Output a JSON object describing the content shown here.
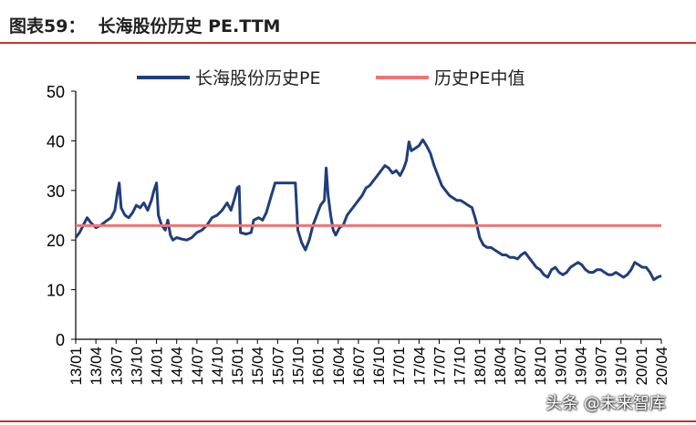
{
  "header": {
    "figure_label": "图表59：",
    "title": "长海股份历史 PE.TTM"
  },
  "watermark": "头条 @未来智库",
  "chart_data": {
    "type": "line",
    "ylim": [
      0,
      50
    ],
    "yticks": [
      0,
      10,
      20,
      30,
      40,
      50
    ],
    "x_tick_labels": [
      "13/01",
      "13/04",
      "13/07",
      "13/10",
      "14/01",
      "14/04",
      "14/07",
      "14/10",
      "15/01",
      "15/04",
      "15/07",
      "15/10",
      "16/01",
      "16/04",
      "16/07",
      "16/10",
      "17/01",
      "17/04",
      "17/07",
      "17/10",
      "18/01",
      "18/04",
      "18/07",
      "18/10",
      "19/01",
      "19/04",
      "19/07",
      "19/10",
      "20/01",
      "20/04"
    ],
    "legend_position": "top",
    "grid": false,
    "series": [
      {
        "name": "长海股份历史PE",
        "color": "#1f3f7a",
        "points": [
          [
            0,
            20.5
          ],
          [
            0.3,
            21.5
          ],
          [
            0.6,
            23
          ],
          [
            0.9,
            24.5
          ],
          [
            1.2,
            23.5
          ],
          [
            1.6,
            22.5
          ],
          [
            2.0,
            23
          ],
          [
            2.4,
            23.8
          ],
          [
            2.8,
            24.5
          ],
          [
            3.1,
            26
          ],
          [
            3.3,
            29.5
          ],
          [
            3.45,
            31.5
          ],
          [
            3.6,
            26.5
          ],
          [
            3.9,
            25
          ],
          [
            4.2,
            24.5
          ],
          [
            4.5,
            25.5
          ],
          [
            4.8,
            27
          ],
          [
            5.1,
            26.5
          ],
          [
            5.4,
            27.5
          ],
          [
            5.7,
            26
          ],
          [
            6.0,
            28
          ],
          [
            6.2,
            30
          ],
          [
            6.4,
            31.5
          ],
          [
            6.55,
            25
          ],
          [
            6.8,
            23
          ],
          [
            7.1,
            22
          ],
          [
            7.3,
            24
          ],
          [
            7.5,
            21
          ],
          [
            7.7,
            20
          ],
          [
            8.0,
            20.5
          ],
          [
            8.4,
            20.2
          ],
          [
            8.8,
            20
          ],
          [
            9.2,
            20.5
          ],
          [
            9.6,
            21.5
          ],
          [
            10.0,
            22
          ],
          [
            10.4,
            23
          ],
          [
            10.8,
            24.5
          ],
          [
            11.2,
            25
          ],
          [
            11.6,
            26
          ],
          [
            12.0,
            27.5
          ],
          [
            12.3,
            26
          ],
          [
            12.6,
            28.5
          ],
          [
            12.8,
            30.5
          ],
          [
            12.95,
            30.8
          ],
          [
            13.05,
            21.5
          ],
          [
            13.5,
            21.2
          ],
          [
            13.9,
            21.5
          ],
          [
            14.1,
            24
          ],
          [
            14.5,
            24.5
          ],
          [
            14.8,
            24
          ],
          [
            15.1,
            25.5
          ],
          [
            15.5,
            29
          ],
          [
            15.8,
            31.5
          ],
          [
            16.5,
            31.5
          ],
          [
            17.0,
            31.5
          ],
          [
            17.4,
            31.5
          ],
          [
            17.6,
            22
          ],
          [
            17.9,
            19.5
          ],
          [
            18.2,
            18
          ],
          [
            18.5,
            20
          ],
          [
            18.8,
            23
          ],
          [
            19.1,
            25
          ],
          [
            19.4,
            27
          ],
          [
            19.7,
            28
          ],
          [
            19.85,
            34.5
          ],
          [
            20.0,
            29
          ],
          [
            20.2,
            25
          ],
          [
            20.4,
            22
          ],
          [
            20.6,
            21
          ],
          [
            20.9,
            22.5
          ],
          [
            21.2,
            23
          ],
          [
            21.5,
            25
          ],
          [
            21.8,
            26
          ],
          [
            22.1,
            27
          ],
          [
            22.4,
            28
          ],
          [
            22.7,
            29
          ],
          [
            23.0,
            30.5
          ],
          [
            23.3,
            31
          ],
          [
            23.6,
            32
          ],
          [
            23.9,
            33
          ],
          [
            24.2,
            34
          ],
          [
            24.5,
            35
          ],
          [
            24.8,
            34.5
          ],
          [
            25.1,
            33.5
          ],
          [
            25.4,
            34
          ],
          [
            25.7,
            33
          ],
          [
            26.0,
            34.5
          ],
          [
            26.2,
            36
          ],
          [
            26.4,
            39.8
          ],
          [
            26.6,
            38
          ],
          [
            26.9,
            38.5
          ],
          [
            27.2,
            39
          ],
          [
            27.5,
            40.2
          ],
          [
            27.8,
            39
          ],
          [
            28.1,
            37.5
          ],
          [
            28.4,
            35
          ],
          [
            28.7,
            33
          ],
          [
            29.0,
            31
          ],
          [
            29.3,
            30
          ],
          [
            29.6,
            29
          ],
          [
            29.9,
            28.5
          ],
          [
            30.2,
            28
          ],
          [
            30.5,
            28
          ],
          [
            30.8,
            27.5
          ],
          [
            31.1,
            27
          ],
          [
            31.4,
            26.5
          ],
          [
            31.7,
            24
          ],
          [
            32.0,
            20.5
          ],
          [
            32.3,
            19
          ],
          [
            32.6,
            18.5
          ],
          [
            32.9,
            18.5
          ],
          [
            33.2,
            18
          ],
          [
            33.5,
            17.5
          ],
          [
            33.8,
            17
          ],
          [
            34.1,
            17
          ],
          [
            34.4,
            16.5
          ],
          [
            34.7,
            16.5
          ],
          [
            35.0,
            16.2
          ],
          [
            35.3,
            17
          ],
          [
            35.6,
            17.5
          ],
          [
            35.9,
            16.5
          ],
          [
            36.2,
            15.5
          ],
          [
            36.5,
            14.5
          ],
          [
            36.8,
            14
          ],
          [
            37.1,
            13
          ],
          [
            37.4,
            12.5
          ],
          [
            37.7,
            14
          ],
          [
            38.0,
            14.5
          ],
          [
            38.3,
            13.5
          ],
          [
            38.6,
            13
          ],
          [
            38.9,
            13.5
          ],
          [
            39.2,
            14.5
          ],
          [
            39.5,
            15
          ],
          [
            39.8,
            15.5
          ],
          [
            40.1,
            15
          ],
          [
            40.4,
            14
          ],
          [
            40.7,
            13.5
          ],
          [
            41.0,
            13.5
          ],
          [
            41.3,
            14
          ],
          [
            41.6,
            14
          ],
          [
            41.9,
            13.5
          ],
          [
            42.2,
            13
          ],
          [
            42.5,
            13
          ],
          [
            42.8,
            13.5
          ],
          [
            43.1,
            13
          ],
          [
            43.4,
            12.5
          ],
          [
            43.7,
            13
          ],
          [
            44.0,
            14
          ],
          [
            44.3,
            15.5
          ],
          [
            44.6,
            15
          ],
          [
            44.9,
            14.5
          ],
          [
            45.2,
            14.5
          ],
          [
            45.5,
            13.5
          ],
          [
            45.8,
            12
          ],
          [
            46.1,
            12.5
          ],
          [
            46.4,
            12.8
          ]
        ]
      },
      {
        "name": "历史PE中值",
        "color": "#f27272",
        "value": 22.9
      }
    ]
  }
}
